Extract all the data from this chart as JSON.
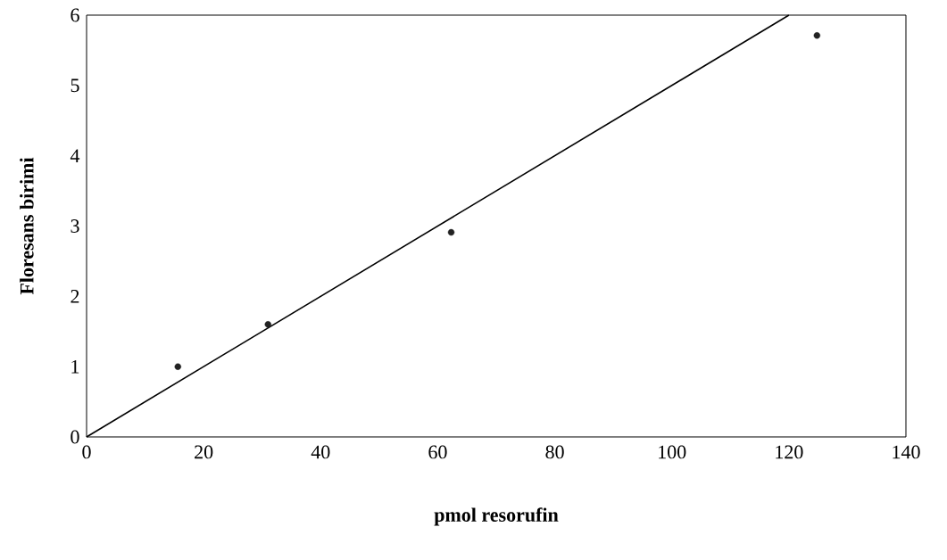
{
  "chart_data": {
    "type": "scatter",
    "xlabel": "pmol resorufin",
    "ylabel": "Floresans birimi",
    "xlim": [
      0,
      140
    ],
    "xticks": [
      0,
      20,
      40,
      60,
      80,
      100,
      120,
      140
    ],
    "ylim": [
      0,
      6
    ],
    "yticks": [
      0,
      1,
      2,
      3,
      4,
      5,
      6
    ],
    "grid": false,
    "series": [
      {
        "color": "#222222",
        "marker": "circle",
        "x": [
          15.6,
          31,
          62.3,
          124.8
        ],
        "values": [
          1.0,
          1.6,
          2.91,
          5.71
        ]
      },
      {
        "type": "line",
        "color": "#000000",
        "marker": "none",
        "line_style": "solid",
        "x": [
          0,
          120
        ],
        "values": [
          0,
          6
        ]
      }
    ]
  }
}
